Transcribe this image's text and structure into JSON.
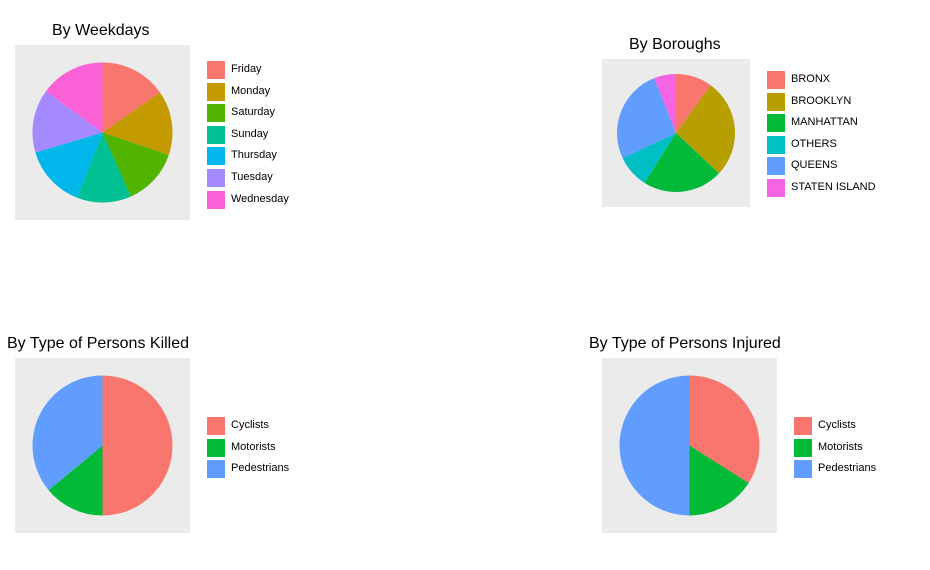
{
  "chart_data": [
    {
      "type": "pie",
      "title": "By Weekdays",
      "start_angle_deg": 0,
      "direction": "clockwise",
      "categories": [
        "Friday",
        "Monday",
        "Saturday",
        "Sunday",
        "Thursday",
        "Tuesday",
        "Wednesday"
      ],
      "values": [
        15.3,
        14.9,
        13.2,
        12.5,
        14.5,
        14.6,
        15.0
      ],
      "colors": [
        "#F8766D",
        "#C49A00",
        "#53B400",
        "#00C094",
        "#00B6EB",
        "#A58AFF",
        "#FB61D7"
      ],
      "legend_position": "right"
    },
    {
      "type": "pie",
      "title": "By Boroughs",
      "start_angle_deg": 0,
      "direction": "clockwise",
      "categories": [
        "BRONX",
        "BROOKLYN",
        "MANHATTAN",
        "OTHERS",
        "QUEENS",
        "STATEN ISLAND"
      ],
      "values": [
        10,
        27,
        22,
        9,
        26,
        6
      ],
      "colors": [
        "#F8766D",
        "#B79F00",
        "#00BA38",
        "#00BFC4",
        "#619CFF",
        "#F564E3"
      ],
      "legend_position": "right"
    },
    {
      "type": "pie",
      "title": "By Type of Persons Killed",
      "start_angle_deg": 0,
      "direction": "clockwise",
      "categories": [
        "Cyclists",
        "Motorists",
        "Pedestrians"
      ],
      "values": [
        50,
        14,
        36
      ],
      "colors": [
        "#F8766D",
        "#00BA38",
        "#619CFF"
      ],
      "legend_position": "right"
    },
    {
      "type": "pie",
      "title": "By Type of Persons Injured",
      "start_angle_deg": 0,
      "direction": "clockwise",
      "categories": [
        "Cyclists",
        "Motorists",
        "Pedestrians"
      ],
      "values": [
        34,
        16,
        50
      ],
      "colors": [
        "#F8766D",
        "#00BA38",
        "#619CFF"
      ],
      "legend_position": "right"
    }
  ]
}
